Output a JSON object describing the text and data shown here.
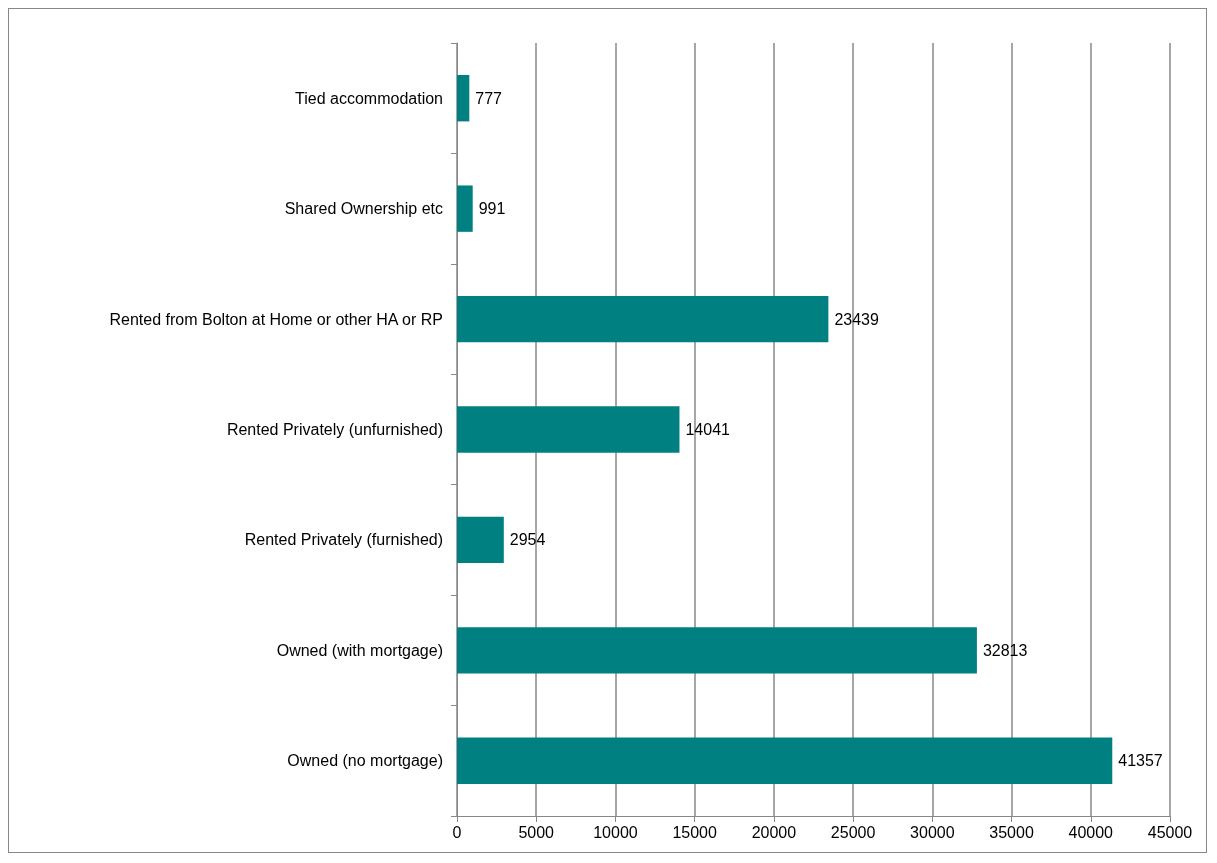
{
  "chart_data": {
    "type": "bar",
    "orientation": "horizontal",
    "categories": [
      "Tied accommodation",
      "Shared Ownership etc",
      "Rented from Bolton at Home or other HA or RP",
      "Rented Privately (unfurnished)",
      "Rented Privately (furnished)",
      "Owned (with mortgage)",
      "Owned (no mortgage)"
    ],
    "values": [
      777,
      991,
      23439,
      14041,
      2954,
      32813,
      41357
    ],
    "color": "#008080",
    "xlim": [
      0,
      45000
    ],
    "xticks": [
      0,
      5000,
      10000,
      15000,
      20000,
      25000,
      30000,
      35000,
      40000,
      45000
    ],
    "grid": "x",
    "data_labels": true
  }
}
